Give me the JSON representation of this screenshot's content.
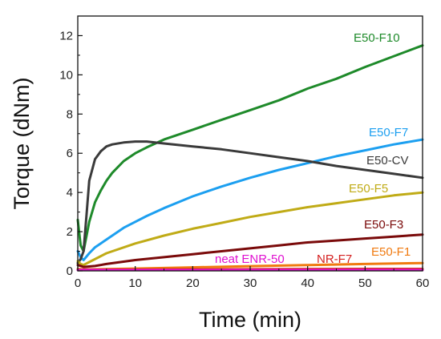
{
  "chart_data": {
    "type": "line",
    "xlabel": "Time (min)",
    "ylabel": "Torque (dNm)",
    "xlim": [
      0,
      60
    ],
    "ylim": [
      0,
      13
    ],
    "xticks": [
      0,
      10,
      20,
      30,
      40,
      50,
      60
    ],
    "yticks": [
      0,
      2,
      4,
      6,
      8,
      10,
      12
    ],
    "grid": false,
    "legend": "inline labels at line ends",
    "series": [
      {
        "name": "E50-F10",
        "color": "#1e8a2a",
        "x": [
          0,
          0.5,
          1,
          2,
          3,
          4,
          5,
          6,
          8,
          10,
          12,
          15,
          20,
          25,
          30,
          35,
          40,
          45,
          50,
          55,
          60
        ],
        "y": [
          2.6,
          1.3,
          1.0,
          2.5,
          3.5,
          4.1,
          4.6,
          5.0,
          5.6,
          6.0,
          6.3,
          6.7,
          7.2,
          7.7,
          8.2,
          8.7,
          9.3,
          9.8,
          10.4,
          10.95,
          11.5
        ]
      },
      {
        "name": "E50-F7",
        "color": "#1c9ff0",
        "x": [
          0,
          0.5,
          1,
          2,
          3,
          5,
          8,
          10,
          12,
          15,
          20,
          25,
          30,
          35,
          40,
          45,
          50,
          55,
          60
        ],
        "y": [
          1.0,
          0.7,
          0.55,
          0.9,
          1.2,
          1.6,
          2.2,
          2.5,
          2.8,
          3.2,
          3.8,
          4.3,
          4.75,
          5.15,
          5.5,
          5.85,
          6.15,
          6.45,
          6.7
        ]
      },
      {
        "name": "E50-CV",
        "color": "#3a3a3a",
        "x": [
          0,
          0.5,
          1,
          1.5,
          2,
          3,
          4,
          5,
          6,
          8,
          10,
          12,
          15,
          20,
          25,
          30,
          35,
          40,
          45,
          50,
          55,
          60
        ],
        "y": [
          0.4,
          0.6,
          1.0,
          2.8,
          4.6,
          5.7,
          6.1,
          6.35,
          6.45,
          6.55,
          6.6,
          6.6,
          6.5,
          6.35,
          6.2,
          6.0,
          5.8,
          5.6,
          5.35,
          5.15,
          4.95,
          4.75
        ]
      },
      {
        "name": "E50-F5",
        "color": "#c0ab16",
        "x": [
          0,
          0.5,
          1,
          2,
          5,
          10,
          15,
          20,
          25,
          30,
          35,
          40,
          45,
          50,
          55,
          60
        ],
        "y": [
          0.5,
          0.35,
          0.3,
          0.45,
          0.9,
          1.4,
          1.8,
          2.15,
          2.45,
          2.75,
          3.0,
          3.25,
          3.45,
          3.65,
          3.85,
          4.0
        ]
      },
      {
        "name": "E50-F3",
        "color": "#7a0a0a",
        "x": [
          0,
          1,
          3,
          5,
          10,
          15,
          20,
          25,
          30,
          35,
          40,
          45,
          50,
          55,
          60
        ],
        "y": [
          0.3,
          0.2,
          0.25,
          0.35,
          0.55,
          0.7,
          0.85,
          1.0,
          1.15,
          1.3,
          1.45,
          1.55,
          1.65,
          1.75,
          1.85
        ]
      },
      {
        "name": "E50-F1",
        "color": "#f07a10",
        "x": [
          0,
          1,
          5,
          10,
          20,
          30,
          40,
          50,
          60
        ],
        "y": [
          0.1,
          0.07,
          0.09,
          0.12,
          0.18,
          0.24,
          0.3,
          0.35,
          0.4
        ]
      },
      {
        "name": "NR-F7",
        "color": "#d42020",
        "x": [
          0,
          10,
          20,
          30,
          40,
          50,
          60
        ],
        "y": [
          0.06,
          0.06,
          0.07,
          0.08,
          0.09,
          0.1,
          0.1
        ]
      },
      {
        "name": "neat ENR-50",
        "color": "#e010d0",
        "x": [
          0,
          10,
          20,
          30,
          40,
          50,
          60
        ],
        "y": [
          0.04,
          0.04,
          0.04,
          0.04,
          0.04,
          0.04,
          0.04
        ]
      }
    ]
  }
}
